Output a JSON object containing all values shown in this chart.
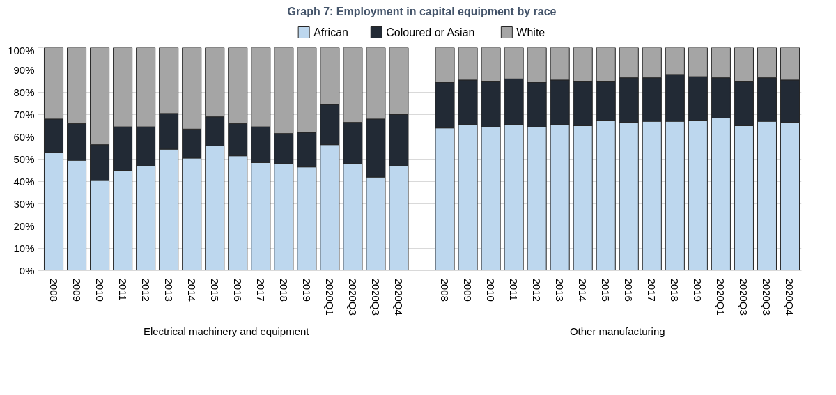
{
  "chart_data": {
    "type": "bar",
    "stacked": true,
    "title": "Graph 7: Employment in capital equipment by race",
    "categories": [
      "2008",
      "2009",
      "2010",
      "2011",
      "2012",
      "2013",
      "2014",
      "2015",
      "2016",
      "2017",
      "2018",
      "2019",
      "2020Q1",
      "2020Q3",
      "2020Q3",
      "2020Q4",
      null,
      "2008",
      "2009",
      "2010",
      "2011",
      "2012",
      "2013",
      "2014",
      "2015",
      "2016",
      "2017",
      "2018",
      "2019",
      "2020Q1",
      "2020Q3",
      "2020Q3",
      "2020Q4"
    ],
    "series": [
      {
        "name": "African",
        "color": "#bdd7ee",
        "values": [
          53,
          49.5,
          40.5,
          45,
          47,
          54.5,
          50.5,
          56,
          51.5,
          48.5,
          48,
          46.5,
          56.5,
          48,
          42,
          47,
          null,
          64,
          65.5,
          64.5,
          65.5,
          64.5,
          65.5,
          65,
          67.5,
          66.5,
          67,
          67,
          67.5,
          68.5,
          65,
          67,
          66.5
        ]
      },
      {
        "name": "Coloured or Asian",
        "color": "#222a35",
        "values": [
          15,
          16.5,
          16,
          19.5,
          17.5,
          16,
          13,
          13,
          14.5,
          16,
          13.5,
          15.5,
          18,
          18.5,
          26,
          23,
          null,
          20.5,
          20,
          20.5,
          20.5,
          20,
          20,
          20,
          17.5,
          20,
          19.5,
          21,
          19.5,
          18,
          20,
          19.5,
          19
        ]
      },
      {
        "name": "White",
        "color": "#a5a5a5",
        "values": [
          32,
          34,
          43.5,
          35.5,
          35.5,
          29.5,
          36.5,
          31,
          34,
          35.5,
          38.5,
          38,
          25.5,
          33.5,
          32,
          30,
          null,
          15.5,
          14.5,
          15,
          14,
          15.5,
          14.5,
          15,
          15,
          13.5,
          13.5,
          12,
          13,
          13.5,
          15,
          13.5,
          14.5
        ]
      }
    ],
    "ylim": [
      0,
      100
    ],
    "yticks": [
      {
        "value": 0,
        "label": "0%"
      },
      {
        "value": 10,
        "label": "10%"
      },
      {
        "value": 20,
        "label": "20%"
      },
      {
        "value": 30,
        "label": "30%"
      },
      {
        "value": 40,
        "label": "40%"
      },
      {
        "value": 50,
        "label": "50%"
      },
      {
        "value": 60,
        "label": "60%"
      },
      {
        "value": 70,
        "label": "70%"
      },
      {
        "value": 80,
        "label": "80%"
      },
      {
        "value": 90,
        "label": "90%"
      },
      {
        "value": 100,
        "label": "100%"
      }
    ],
    "grid": "y",
    "legend": "top",
    "annotations": [
      "Electrical machinery and equipment",
      "Other manufacturing"
    ]
  }
}
